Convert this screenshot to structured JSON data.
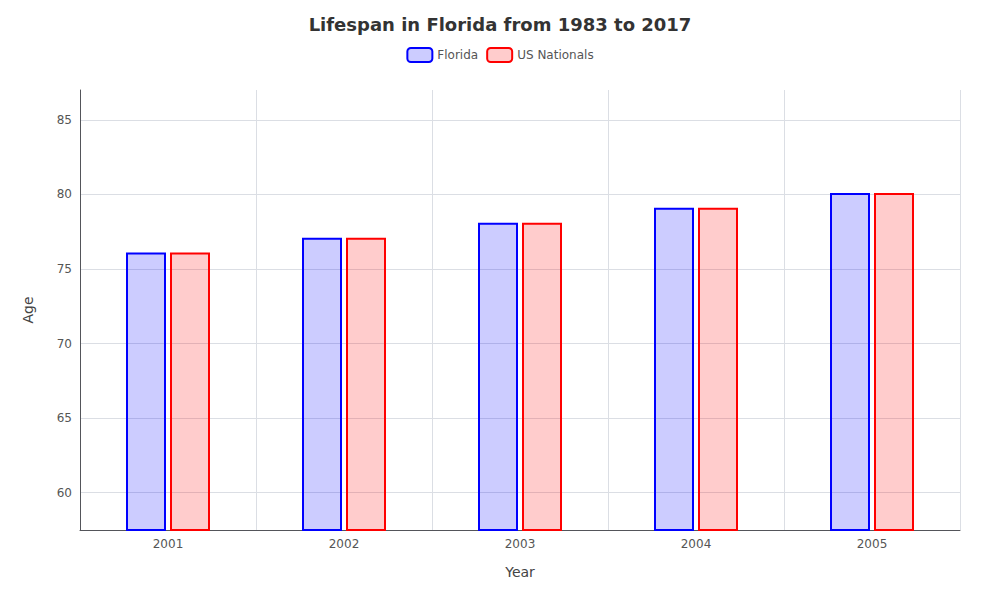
{
  "chart_data": {
    "type": "bar",
    "title": "Lifespan in Florida from 1983 to 2017",
    "x_label": "Year",
    "y_label": "Age",
    "categories": [
      "2001",
      "2002",
      "2003",
      "2004",
      "2005"
    ],
    "series": [
      {
        "name": "Florida",
        "color": "#0000ff",
        "values": [
          76.1,
          77.1,
          78.1,
          79.1,
          80.1
        ]
      },
      {
        "name": "US Nationals",
        "color": "#ff0000",
        "values": [
          76.1,
          77.1,
          78.1,
          79.1,
          80.1
        ]
      }
    ],
    "ylim": [
      57.5,
      87
    ],
    "yticks": [
      60,
      65,
      70,
      75,
      80,
      85
    ],
    "grid": true,
    "legend": "top"
  }
}
